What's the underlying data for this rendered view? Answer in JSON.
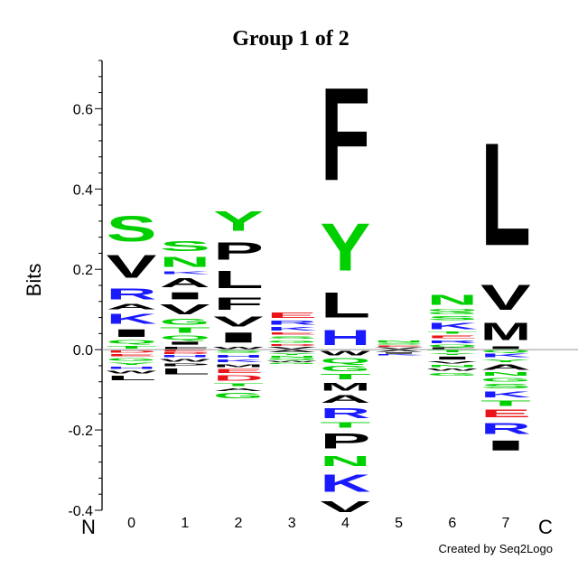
{
  "chart_data": {
    "type": "sequence-logo",
    "title": "Group 1 of 2",
    "ylabel": "Bits",
    "xlabel": "",
    "ylim": [
      -0.4,
      0.72
    ],
    "yticks": [
      "-0.4",
      "-0.2",
      "0.0",
      "0.2",
      "0.4",
      "0.6"
    ],
    "n_terminus_label": "N",
    "c_terminus_label": "C",
    "credit": "Created by Seq2Logo",
    "colors": {
      "acidic": "#e8141a",
      "basic": "#1a1aff",
      "polar": "#00d000",
      "hydrophobic": "#000000"
    },
    "residue_class": {
      "D": "acidic",
      "E": "acidic",
      "K": "basic",
      "R": "basic",
      "H": "basic",
      "S": "polar",
      "T": "polar",
      "N": "polar",
      "Q": "polar",
      "G": "polar",
      "Y": "polar",
      "C": "polar",
      "A": "hydrophobic",
      "V": "hydrophobic",
      "L": "hydrophobic",
      "I": "hydrophobic",
      "P": "hydrophobic",
      "F": "hydrophobic",
      "M": "hydrophobic",
      "W": "hydrophobic"
    },
    "positions": [
      {
        "label": "0",
        "positive": [
          [
            "T",
            0.012
          ],
          [
            "Q",
            0.014
          ],
          [
            "I",
            0.03
          ],
          [
            "K",
            0.04
          ],
          [
            "A",
            0.02
          ],
          [
            "R",
            0.045
          ],
          [
            "V",
            0.09
          ],
          [
            "S",
            0.1
          ]
        ],
        "negative": [
          [
            "D",
            0.01
          ],
          [
            "E",
            0.008
          ],
          [
            "G",
            0.012
          ],
          [
            "Y",
            0.01
          ],
          [
            "H",
            0.01
          ],
          [
            "W",
            0.012
          ],
          [
            "L",
            0.018
          ]
        ]
      },
      {
        "label": "1",
        "positive": [
          [
            "F",
            0.01
          ],
          [
            "I",
            0.012
          ],
          [
            "Q",
            0.016
          ],
          [
            "T",
            0.02
          ],
          [
            "G",
            0.022
          ],
          [
            "V",
            0.04
          ],
          [
            "I",
            0.028
          ],
          [
            "A",
            0.038
          ],
          [
            "K",
            0.012
          ],
          [
            "N",
            0.04
          ],
          [
            "S",
            0.04
          ]
        ],
        "negative": [
          [
            "E",
            0.006
          ],
          [
            "D",
            0.006
          ],
          [
            "H",
            0.008
          ],
          [
            "W",
            0.012
          ],
          [
            "P",
            0.012
          ],
          [
            "L",
            0.022
          ]
        ]
      },
      {
        "label": "2",
        "positive": [
          [
            "W",
            0.01
          ],
          [
            "I",
            0.04
          ],
          [
            "V",
            0.04
          ],
          [
            "F",
            0.05
          ],
          [
            "L",
            0.07
          ],
          [
            "P",
            0.07
          ],
          [
            "Y",
            0.08
          ]
        ],
        "negative": [
          [
            "S",
            0.01
          ],
          [
            "H",
            0.012
          ],
          [
            "K",
            0.012
          ],
          [
            "M",
            0.012
          ],
          [
            "E",
            0.015
          ],
          [
            "D",
            0.02
          ],
          [
            "T",
            0.012
          ],
          [
            "A",
            0.012
          ],
          [
            "G",
            0.02
          ]
        ]
      },
      {
        "label": "3",
        "positive": [
          [
            "V",
            0.008
          ],
          [
            "D",
            0.007
          ],
          [
            "G",
            0.01
          ],
          [
            "S",
            0.01
          ],
          [
            "E",
            0.01
          ],
          [
            "K",
            0.014
          ],
          [
            "R",
            0.016
          ],
          [
            "E",
            0.02
          ]
        ],
        "negative": [
          [
            "A",
            0.008
          ],
          [
            "Y",
            0.006
          ],
          [
            "N",
            0.007
          ],
          [
            "Q",
            0.006
          ],
          [
            "W",
            0.005
          ],
          [
            "G",
            0.005
          ]
        ]
      },
      {
        "label": "4",
        "positive": [
          [
            "H",
            0.06
          ],
          [
            "L",
            0.1
          ],
          [
            "Y",
            0.19
          ],
          [
            "F",
            0.37
          ]
        ],
        "negative": [
          [
            "W",
            0.018
          ],
          [
            "Q",
            0.02
          ],
          [
            "G",
            0.02
          ],
          [
            "T",
            0.02
          ],
          [
            "M",
            0.03
          ],
          [
            "A",
            0.03
          ],
          [
            "R",
            0.04
          ],
          [
            "T",
            0.02
          ],
          [
            "P",
            0.06
          ],
          [
            "N",
            0.04
          ],
          [
            "K",
            0.07
          ],
          [
            "V",
            0.045
          ]
        ]
      },
      {
        "label": "5",
        "positive": [
          [
            "V",
            0.006
          ],
          [
            "E",
            0.005
          ],
          [
            "S",
            0.006
          ],
          [
            "N",
            0.007
          ]
        ],
        "negative": [
          [
            "A",
            0.006
          ],
          [
            "I",
            0.005
          ],
          [
            "K",
            0.004
          ]
        ]
      },
      {
        "label": "6",
        "positive": [
          [
            "F",
            0.006
          ],
          [
            "Q",
            0.008
          ],
          [
            "R",
            0.012
          ],
          [
            "E",
            0.012
          ],
          [
            "T",
            0.008
          ],
          [
            "K",
            0.025
          ],
          [
            "S",
            0.015
          ],
          [
            "G",
            0.008
          ],
          [
            "Q",
            0.01
          ],
          [
            "N",
            0.04
          ]
        ],
        "negative": [
          [
            "T",
            0.008
          ],
          [
            "Y",
            0.007
          ],
          [
            "I",
            0.012
          ],
          [
            "V",
            0.01
          ],
          [
            "N",
            0.008
          ],
          [
            "W",
            0.01
          ],
          [
            "G",
            0.012
          ]
        ]
      },
      {
        "label": "7",
        "positive": [
          [
            "I",
            0.01
          ],
          [
            "M",
            0.07
          ],
          [
            "V",
            0.1
          ],
          [
            "L",
            0.41
          ]
        ],
        "negative": [
          [
            "Q",
            0.008
          ],
          [
            "K",
            0.014
          ],
          [
            "Y",
            0.012
          ],
          [
            "A",
            0.02
          ],
          [
            "N",
            0.014
          ],
          [
            "G",
            0.014
          ],
          [
            "S",
            0.018
          ],
          [
            "K",
            0.024
          ],
          [
            "T",
            0.02
          ],
          [
            "E",
            0.03
          ],
          [
            "R",
            0.045
          ],
          [
            "I",
            0.04
          ]
        ]
      }
    ]
  }
}
